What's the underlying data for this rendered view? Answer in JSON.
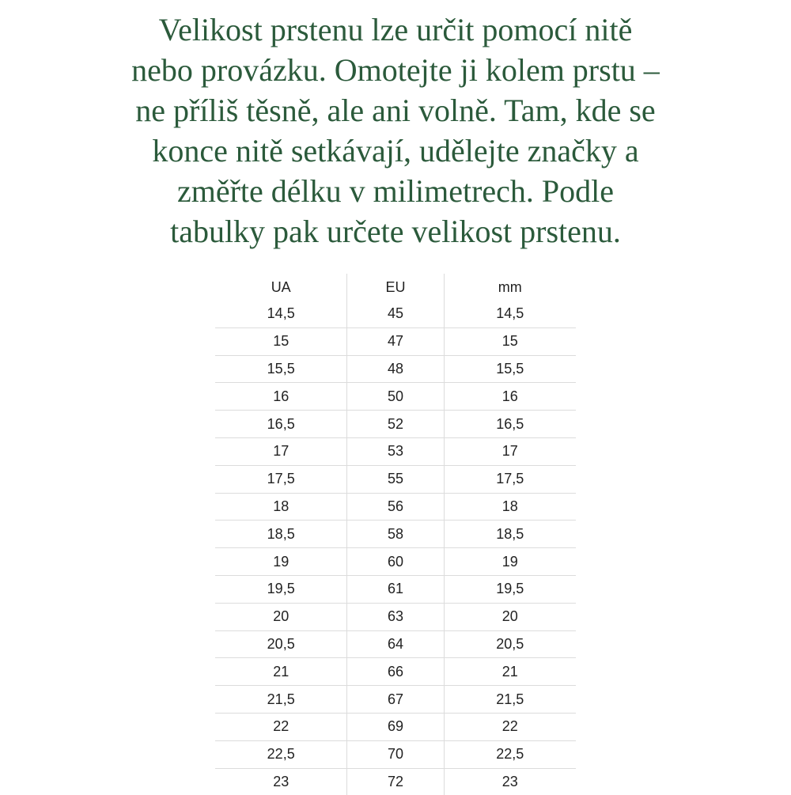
{
  "intro_lines": [
    "Velikost prstenu lze určit pomocí nitě",
    "nebo provázku. Omotejte ji kolem prstu –",
    "ne příliš těsně, ale ani volně. Tam, kde se",
    "konce nitě setkávají, udělejte značky a",
    "změřte délku v milimetrech. Podle",
    "tabulky pak určete velikost prstenu."
  ],
  "table": {
    "headers": [
      "UA",
      "EU",
      "mm"
    ],
    "rows": [
      [
        "14,5",
        "45",
        "14,5"
      ],
      [
        "15",
        "47",
        "15"
      ],
      [
        "15,5",
        "48",
        "15,5"
      ],
      [
        "16",
        "50",
        "16"
      ],
      [
        "16,5",
        "52",
        "16,5"
      ],
      [
        "17",
        "53",
        "17"
      ],
      [
        "17,5",
        "55",
        "17,5"
      ],
      [
        "18",
        "56",
        "18"
      ],
      [
        "18,5",
        "58",
        "18,5"
      ],
      [
        "19",
        "60",
        "19"
      ],
      [
        "19,5",
        "61",
        "19,5"
      ],
      [
        "20",
        "63",
        "20"
      ],
      [
        "20,5",
        "64",
        "20,5"
      ],
      [
        "21",
        "66",
        "21"
      ],
      [
        "21,5",
        "67",
        "21,5"
      ],
      [
        "22",
        "69",
        "22"
      ],
      [
        "22,5",
        "70",
        "22,5"
      ],
      [
        "23",
        "72",
        "23"
      ]
    ]
  },
  "colors": {
    "heading_text": "#2b5a3b",
    "table_text": "#222222",
    "grid": "#dcdcdc"
  }
}
